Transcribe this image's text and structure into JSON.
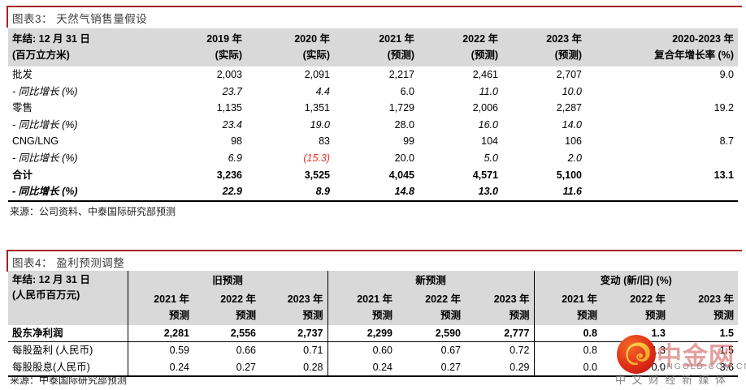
{
  "colors": {
    "accent_red": "#a62121",
    "negative_red": "#ee2e1f",
    "header_bg": "#d9d9d9",
    "title_text": "#3f3f3f"
  },
  "figure3": {
    "title": "图表3： 天然气销售量假设",
    "header": {
      "label_line1": "年结: 12 月 31 日",
      "label_line2": "(百万立方米)",
      "cols": [
        {
          "line1": "2019 年",
          "line2": "(实际)"
        },
        {
          "line1": "2020 年",
          "line2": "(实际)"
        },
        {
          "line1": "2021 年",
          "line2": "(预测)"
        },
        {
          "line1": "2022 年",
          "line2": "(预测)"
        },
        {
          "line1": "2023 年",
          "line2": "(预测)"
        },
        {
          "line1": "2020-2023 年",
          "line2": "复合年增长率 (%)"
        }
      ]
    },
    "rows": [
      {
        "label": "批发",
        "label_style": "",
        "values": [
          "2,003",
          "2,091",
          "2,217",
          "2,461",
          "2,707",
          "9.0"
        ],
        "value_styles": [
          "",
          "",
          "",
          "",
          "",
          ""
        ]
      },
      {
        "label": "- 同比增长 (%)",
        "label_style": "i",
        "values": [
          "23.7",
          "4.4",
          "6.0",
          "11.0",
          "10.0",
          ""
        ],
        "value_styles": [
          "i",
          "i",
          "",
          "i",
          "i",
          ""
        ]
      },
      {
        "label": "零售",
        "label_style": "",
        "values": [
          "1,135",
          "1,351",
          "1,729",
          "2,006",
          "2,287",
          "19.2"
        ],
        "value_styles": [
          "",
          "",
          "",
          "",
          "",
          ""
        ]
      },
      {
        "label": "- 同比增长 (%)",
        "label_style": "i",
        "values": [
          "23.4",
          "19.0",
          "28.0",
          "16.0",
          "14.0",
          ""
        ],
        "value_styles": [
          "i",
          "i",
          "",
          "i",
          "i",
          ""
        ]
      },
      {
        "label": "CNG/LNG",
        "label_style": "",
        "values": [
          "98",
          "83",
          "99",
          "104",
          "106",
          "8.7"
        ],
        "value_styles": [
          "",
          "",
          "",
          "",
          "",
          ""
        ]
      },
      {
        "label": "- 同比增长 (%)",
        "label_style": "i",
        "values": [
          "6.9",
          "(15.3)",
          "20.0",
          "5.0",
          "2.0",
          ""
        ],
        "value_styles": [
          "i",
          "ir",
          "",
          "i",
          "i",
          ""
        ]
      },
      {
        "label": "合计",
        "label_style": "b",
        "values": [
          "3,236",
          "3,525",
          "4,045",
          "4,571",
          "5,100",
          "13.1"
        ],
        "value_styles": [
          "b",
          "b",
          "b",
          "b",
          "b",
          "b"
        ]
      },
      {
        "label": "- 同比增长 (%)",
        "label_style": "bi",
        "values": [
          "22.9",
          "8.9",
          "14.8",
          "13.0",
          "11.6",
          ""
        ],
        "value_styles": [
          "bi",
          "bi",
          "bi",
          "bi",
          "bi",
          ""
        ]
      }
    ],
    "source": "来源：公司资料、中泰国际研究部预测"
  },
  "figure4": {
    "title": "图表4： 盈利预测调整",
    "header": {
      "label_line1": "年结: 12 月 31 日",
      "label_line2": "(人民币百万元)",
      "groups": [
        "旧预测",
        "新预测",
        "变动 (新/旧) (%)"
      ],
      "subcols": [
        {
          "line1": "2021 年",
          "line2": "预测"
        },
        {
          "line1": "2022 年",
          "line2": "预测"
        },
        {
          "line1": "2023 年",
          "line2": "预测"
        },
        {
          "line1": "2021 年",
          "line2": "预测"
        },
        {
          "line1": "2022 年",
          "line2": "预测"
        },
        {
          "line1": "2023 年",
          "line2": "预测"
        },
        {
          "line1": "2021 年",
          "line2": "预测"
        },
        {
          "line1": "2022 年",
          "line2": "预测"
        },
        {
          "line1": "2023 年",
          "line2": "预测"
        }
      ]
    },
    "rows": [
      {
        "label": "股东净利润",
        "style": "b",
        "values": [
          "2,281",
          "2,556",
          "2,737",
          "2,299",
          "2,590",
          "2,777",
          "0.8",
          "1.3",
          "1.5"
        ]
      },
      {
        "label": "每股盈利 (人民币)",
        "style": "",
        "values": [
          "0.59",
          "0.66",
          "0.71",
          "0.60",
          "0.67",
          "0.72",
          "0.8",
          "1.3",
          "1.5"
        ]
      },
      {
        "label": "每股股息(人民币)",
        "style": "",
        "values": [
          "0.24",
          "0.27",
          "0.28",
          "0.24",
          "0.27",
          "0.29",
          "0.0",
          "0.0",
          "3.6"
        ]
      }
    ],
    "source": "来源：中泰国际研究部预测"
  },
  "watermark": {
    "name": "中金网",
    "domain": "CNGOLD.COM.CN",
    "tagline": "中文财经新媒体",
    "logo_icon": "cngold-cloud-logo"
  }
}
